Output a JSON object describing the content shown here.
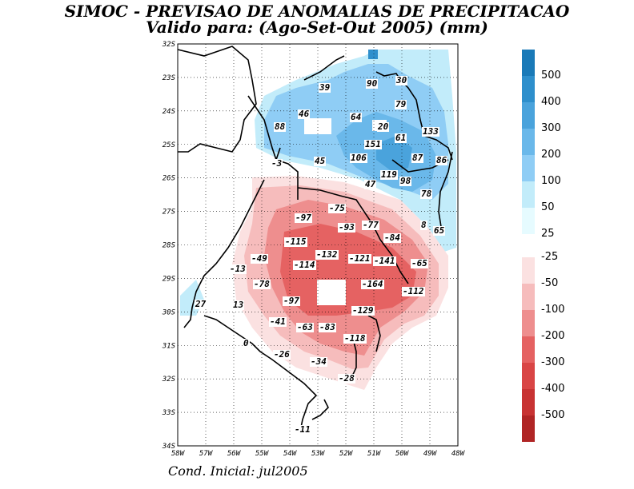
{
  "title_line1": "SIMOC - PREVISAO DE ANOMALIAS DE PRECIPITACAO",
  "title_line2": "Valido para: (Ago-Set-Out 2005) (mm)",
  "footer": "Cond. Inicial: jul2005",
  "lat_ticks": [
    "32S",
    "23S",
    "24S",
    "25S",
    "26S",
    "27S",
    "28S",
    "29S",
    "30S",
    "31S",
    "32S",
    "33S",
    "34S"
  ],
  "lon_ticks": [
    "58W",
    "57W",
    "56W",
    "55W",
    "54W",
    "53W",
    "52W",
    "51W",
    "50W",
    "49W",
    "48W"
  ],
  "colorbar": {
    "positive_labels": [
      "500",
      "400",
      "300",
      "200",
      "100",
      "50",
      "25"
    ],
    "negative_labels": [
      "-25",
      "-50",
      "-100",
      "-200",
      "-300",
      "-400",
      "-500"
    ],
    "positive_colors": [
      "#1a7ab8",
      "#2e8fcc",
      "#4aa3dc",
      "#6ab8ea",
      "#8fcdf5",
      "#c2ecfa",
      "#e6fbff"
    ],
    "negative_colors": [
      "#fbe1e1",
      "#f6bcbc",
      "#ee8e8e",
      "#e56262",
      "#d94545",
      "#c83333",
      "#b02525"
    ]
  },
  "values": [
    {
      "t": "39"
    },
    {
      "t": "90"
    },
    {
      "t": "30"
    },
    {
      "t": "79"
    },
    {
      "t": "46"
    },
    {
      "t": "64"
    },
    {
      "t": "88"
    },
    {
      "t": "20"
    },
    {
      "t": "133"
    },
    {
      "t": "61"
    },
    {
      "t": "151"
    },
    {
      "t": "106"
    },
    {
      "t": "87"
    },
    {
      "t": "86"
    },
    {
      "t": "-3"
    },
    {
      "t": "45"
    },
    {
      "t": "119"
    },
    {
      "t": "47"
    },
    {
      "t": "98"
    },
    {
      "t": "78"
    },
    {
      "t": "-75"
    },
    {
      "t": "-97"
    },
    {
      "t": "-93"
    },
    {
      "t": "-77"
    },
    {
      "t": "8"
    },
    {
      "t": "65"
    },
    {
      "t": "-84"
    },
    {
      "t": "-115"
    },
    {
      "t": "-49"
    },
    {
      "t": "-132"
    },
    {
      "t": "-121"
    },
    {
      "t": "-141"
    },
    {
      "t": "-65"
    },
    {
      "t": "-114"
    },
    {
      "t": "-13"
    },
    {
      "t": "-78"
    },
    {
      "t": "-164"
    },
    {
      "t": "-112"
    },
    {
      "t": "27"
    },
    {
      "t": "13"
    },
    {
      "t": "-97"
    },
    {
      "t": "-129"
    },
    {
      "t": "-41"
    },
    {
      "t": "-63"
    },
    {
      "t": "-83"
    },
    {
      "t": "-118"
    },
    {
      "t": "0"
    },
    {
      "t": "-26"
    },
    {
      "t": "-34"
    },
    {
      "t": "-28"
    },
    {
      "t": "-11"
    }
  ]
}
